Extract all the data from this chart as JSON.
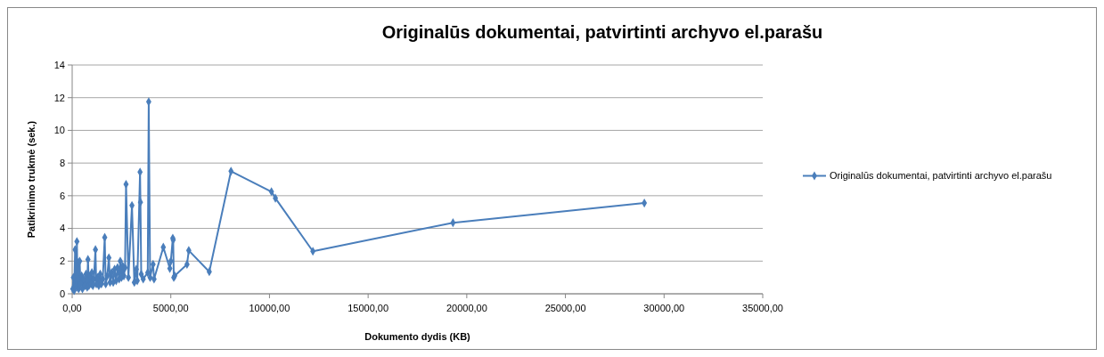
{
  "chart_data": {
    "type": "line",
    "title": "Originalūs dokumentai, patvirtinti archyvo el.parašu",
    "xlabel": "Dokumento dydis (KB)",
    "ylabel": "Patikrinimo trukmė  (sek.)",
    "xlim": [
      0,
      35000
    ],
    "xticks": [
      {
        "value": 0,
        "label": "0,00"
      },
      {
        "value": 5000,
        "label": "5000,00"
      },
      {
        "value": 10000,
        "label": "10000,00"
      },
      {
        "value": 15000,
        "label": "15000,00"
      },
      {
        "value": 20000,
        "label": "20000,00"
      },
      {
        "value": 25000,
        "label": "25000,00"
      },
      {
        "value": 30000,
        "label": "30000,00"
      },
      {
        "value": 35000,
        "label": "35000,00"
      }
    ],
    "ylim": [
      0,
      14
    ],
    "yticks": [
      0,
      2,
      4,
      6,
      8,
      10,
      12,
      14
    ],
    "grid": "y",
    "legend": "right",
    "marker": "diamond",
    "line_style": "solid",
    "series": [
      {
        "name": "Originalūs dokumentai, patvirtinti archyvo el.parašu",
        "color": "#4a7ebb",
        "x": [
          30,
          60,
          100,
          150,
          200,
          240,
          270,
          300,
          330,
          380,
          420,
          480,
          520,
          580,
          640,
          700,
          760,
          800,
          850,
          900,
          960,
          1000,
          1050,
          1100,
          1180,
          1220,
          1280,
          1350,
          1420,
          1480,
          1550,
          1650,
          1700,
          1780,
          1860,
          1920,
          2000,
          2080,
          2150,
          2230,
          2300,
          2380,
          2440,
          2500,
          2560,
          2620,
          2680,
          2730,
          2850,
          3030,
          3150,
          3250,
          3300,
          3440,
          3460,
          3500,
          3600,
          3830,
          3880,
          3950,
          4100,
          4150,
          4620,
          4950,
          5000,
          5100,
          5120,
          5150,
          5200,
          5820,
          5910,
          6950,
          8050,
          10100,
          10300,
          12200,
          19300,
          29000
        ],
        "values": [
          0.3,
          1.0,
          0.2,
          2.7,
          0.5,
          3.2,
          0.4,
          1.9,
          0.3,
          2.0,
          0.6,
          1.1,
          0.3,
          0.9,
          0.5,
          1.2,
          0.4,
          2.1,
          0.5,
          1.1,
          0.6,
          1.3,
          0.5,
          0.9,
          2.7,
          0.6,
          1.0,
          0.5,
          1.2,
          0.6,
          0.9,
          3.45,
          0.6,
          1.1,
          2.2,
          0.7,
          1.3,
          0.7,
          1.5,
          0.8,
          1.6,
          0.9,
          2.0,
          1.0,
          1.7,
          1.1,
          1.6,
          6.7,
          1.0,
          5.4,
          0.7,
          1.5,
          0.8,
          7.45,
          5.6,
          1.2,
          0.9,
          1.3,
          11.75,
          1.0,
          1.8,
          0.9,
          2.85,
          1.55,
          2.0,
          3.4,
          3.3,
          1.0,
          1.1,
          1.8,
          2.65,
          1.35,
          7.5,
          6.25,
          5.85,
          2.6,
          4.35,
          5.55
        ]
      }
    ]
  }
}
